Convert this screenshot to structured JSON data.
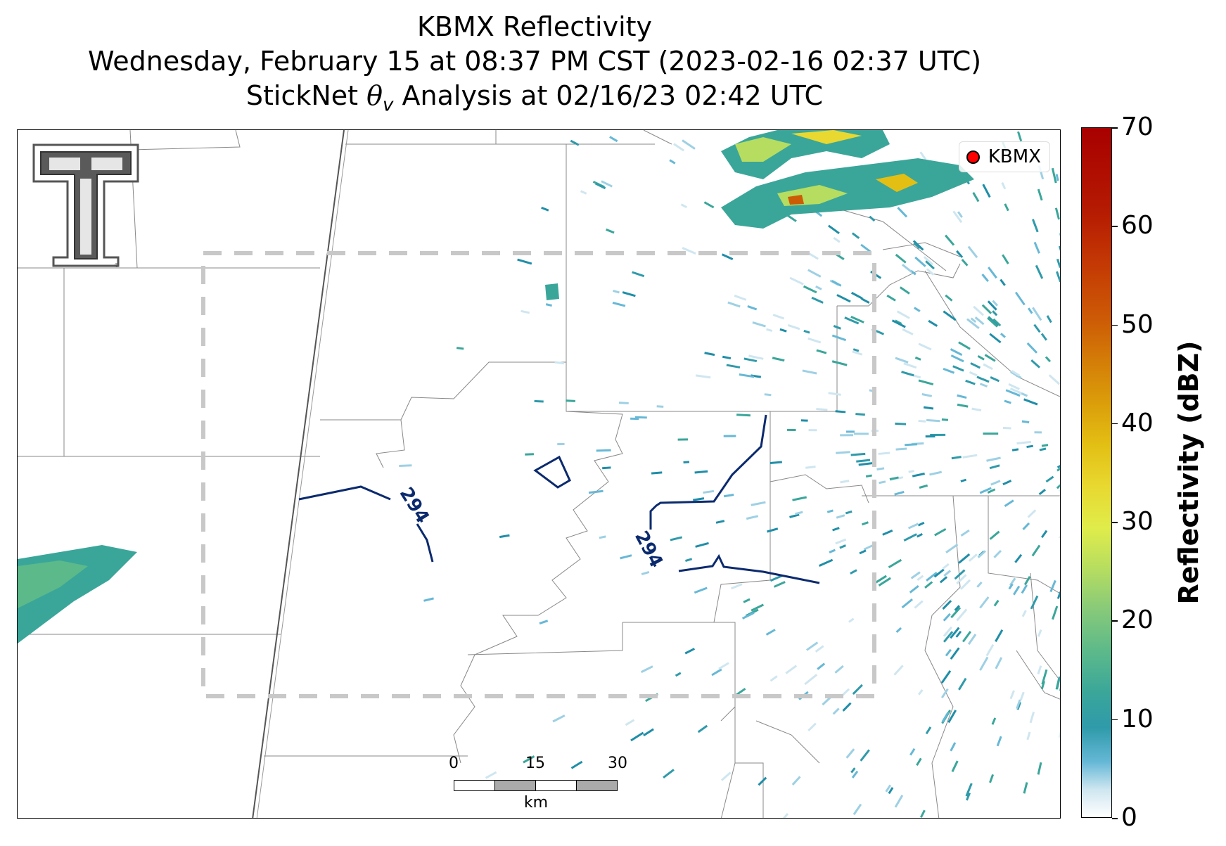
{
  "title": {
    "line1": "KBMX Reflectivity",
    "line2": "Wednesday, February 15 at 08:37 PM CST (2023-02-16 02:37 UTC)",
    "line3_pre": "StickNet ",
    "line3_theta": "θ",
    "line3_sub": "v",
    "line3_post": " Analysis at 02/16/23 02:42 UTC"
  },
  "legend": {
    "label": "KBMX",
    "marker_color": "#ff0000"
  },
  "contour_labels": [
    "294",
    "294"
  ],
  "contour_color": "#0b2a6e",
  "scalebar": {
    "ticks": [
      "0",
      "15",
      "30"
    ],
    "unit": "km"
  },
  "colorbar": {
    "label": "Reflectivity (dBZ)",
    "ticks": [
      "0",
      "10",
      "20",
      "30",
      "40",
      "50",
      "60",
      "70"
    ],
    "range": [
      0,
      70
    ]
  },
  "logo_icon": "texas-tech-double-t-logo"
}
